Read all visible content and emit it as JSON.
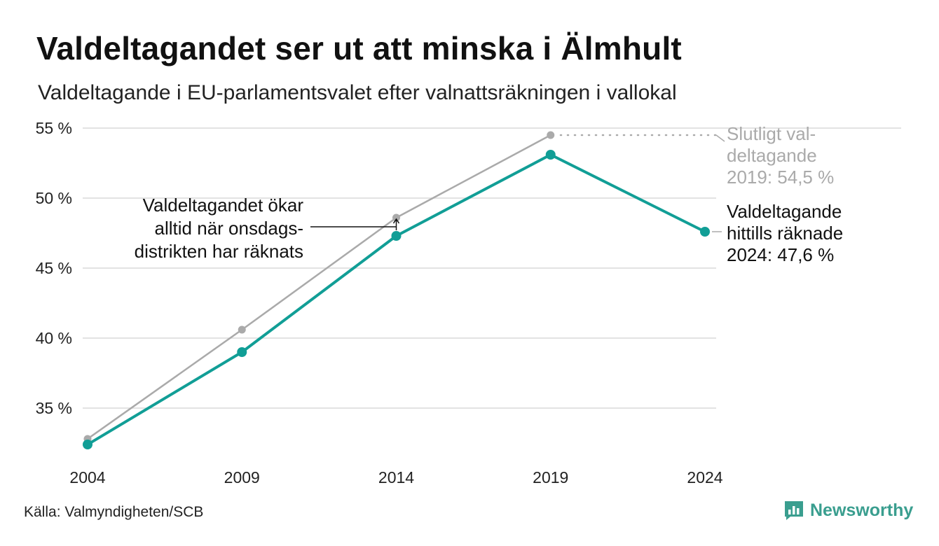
{
  "header": {
    "title": "Valdeltagandet ser ut att minska i Älmhult",
    "subtitle": "Valdeltagande i EU-parlamentsvalet efter valnattsräkningen i vallokal"
  },
  "footer": {
    "source": "Källa: Valmyndigheten/SCB",
    "brand": "Newsworthy"
  },
  "chart_data": {
    "type": "line",
    "title": "Valdeltagandet ser ut att minska i Älmhult",
    "subtitle": "Valdeltagande i EU-parlamentsvalet efter valnattsräkningen i vallokal",
    "x": [
      2004,
      2009,
      2014,
      2019,
      2024
    ],
    "x_tick_labels": [
      "2004",
      "2009",
      "2014",
      "2019",
      "2024"
    ],
    "y_ticks": [
      35,
      40,
      45,
      50,
      55
    ],
    "y_tick_labels": [
      "35 %",
      "40 %",
      "45 %",
      "50 %",
      "55 %"
    ],
    "ylim": [
      31.5,
      55
    ],
    "grid": true,
    "legend": "none",
    "series": [
      {
        "key": "final",
        "color": "#aaaaaa",
        "values": [
          32.8,
          40.6,
          48.6,
          54.5,
          null
        ]
      },
      {
        "key": "election_night",
        "color": "#119e96",
        "values": [
          32.4,
          39.0,
          47.3,
          53.1,
          47.6
        ]
      }
    ],
    "annotations": {
      "final_2019": [
        "Slutligt val-",
        "deltagande",
        "2019: 54,5 %"
      ],
      "counted_2024": [
        "Valdeltagande",
        "hittills räknade",
        "2024: 47,6 %"
      ],
      "wednesday": [
        "Valdeltagandet ökar",
        "alltid när onsdags-",
        "distrikten har räknats"
      ]
    },
    "colors": {
      "final": "#aaaaaa",
      "election_night": "#119e96",
      "grid": "#e3e3e3",
      "brand": "#3a9e8f"
    }
  }
}
